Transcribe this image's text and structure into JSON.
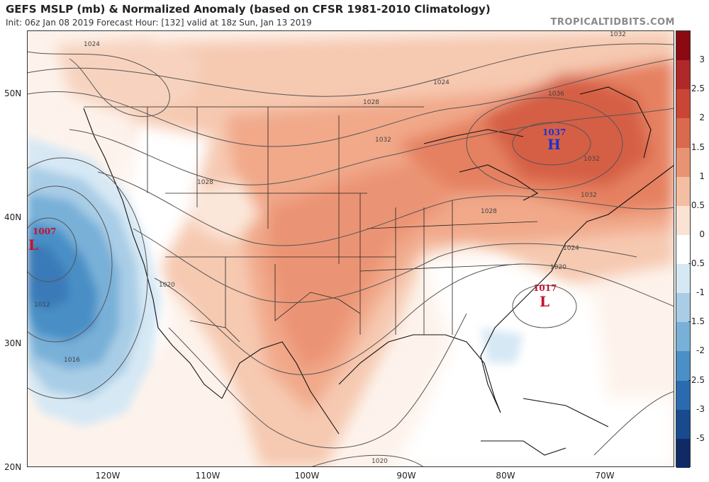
{
  "title": "GEFS MSLP (mb) & Normalized Anomaly (based on CFSR 1981-2010 Climatology)",
  "subtitle": "Init: 06z Jan 08 2019   Forecast Hour: [132]   valid at 18z Sun, Jan 13 2019",
  "brand": "TROPICALTIDBITS.COM",
  "axes": {
    "lat_labels": [
      "50N",
      "40N",
      "30N",
      "20N"
    ],
    "lon_labels": [
      "120W",
      "110W",
      "100W",
      "90W",
      "80W",
      "70W"
    ]
  },
  "colorbar": {
    "labels": [
      "3",
      "2.5",
      "2",
      "1.5",
      "1",
      "0.5",
      "0",
      "-0.5",
      "-1",
      "-1.5",
      "-2",
      "-2.5",
      "-3",
      "-5"
    ],
    "colors": [
      "#8b0a12",
      "#b0282a",
      "#c94637",
      "#d96a4e",
      "#e89474",
      "#f4bea2",
      "#fbe3d3",
      "#ffffff",
      "#d6e8f4",
      "#a9cde6",
      "#78b0d8",
      "#4a8fc6",
      "#2a6bb0",
      "#1a4a8e",
      "#102a66"
    ]
  },
  "pressure_systems": [
    {
      "type": "L",
      "value": "1007",
      "color": "#c8102e"
    },
    {
      "type": "H",
      "value": "1037",
      "color": "#1a33cc"
    },
    {
      "type": "L",
      "value": "1017",
      "color": "#c8102e"
    }
  ],
  "isobar_labels": [
    "1024",
    "1028",
    "1028",
    "1032",
    "1032",
    "1036",
    "1024",
    "1032",
    "1028",
    "1024",
    "1020",
    "1020",
    "1012",
    "1016",
    "1020",
    "1032"
  ]
}
